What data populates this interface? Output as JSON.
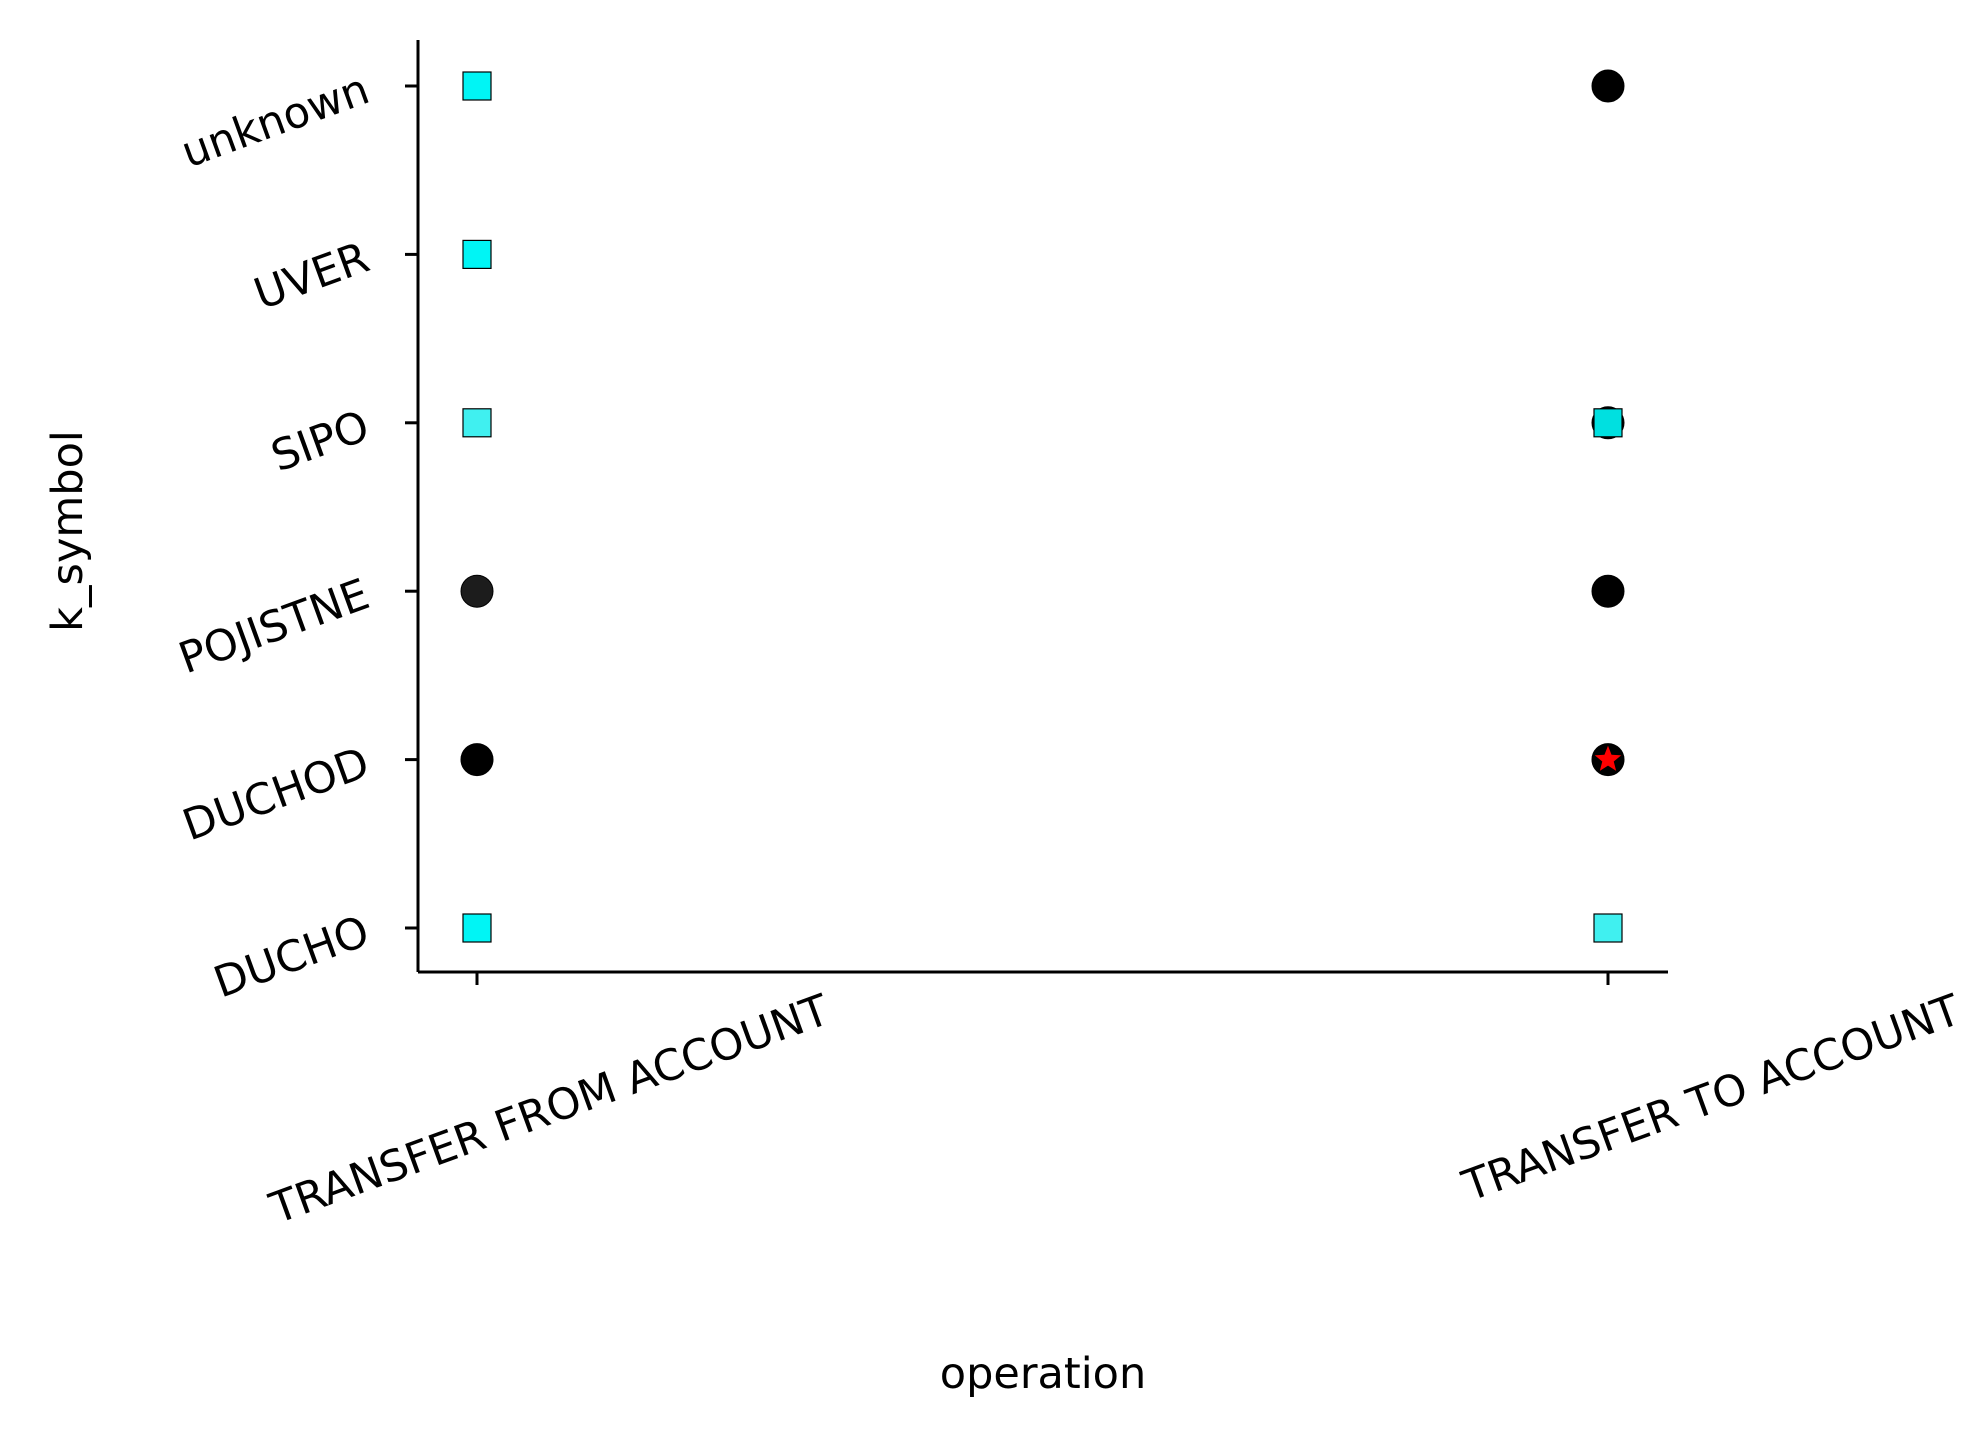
{
  "chart_data": {
    "type": "scatter",
    "xlabel": "operation",
    "ylabel": "k_symbol",
    "x_categories": [
      "TRANSFER FROM ACCOUNT",
      "TRANSFER TO ACCOUNT"
    ],
    "y_categories": [
      "DUCHO",
      "DUCHOD",
      "POJISTNE",
      "SIPO",
      "UVER",
      "unknown"
    ],
    "grid": false,
    "legend": "none",
    "points": [
      {
        "x": "TRANSFER FROM ACCOUNT",
        "y": "unknown",
        "marker": "square",
        "color": "#00f5f5"
      },
      {
        "x": "TRANSFER FROM ACCOUNT",
        "y": "UVER",
        "marker": "square",
        "color": "#00f5f5"
      },
      {
        "x": "TRANSFER FROM ACCOUNT",
        "y": "SIPO",
        "marker": "square",
        "color": "#40f0f0"
      },
      {
        "x": "TRANSFER FROM ACCOUNT",
        "y": "POJISTNE",
        "marker": "circle",
        "color": "#1c1c1c"
      },
      {
        "x": "TRANSFER FROM ACCOUNT",
        "y": "DUCHOD",
        "marker": "circle",
        "color": "#000000"
      },
      {
        "x": "TRANSFER FROM ACCOUNT",
        "y": "DUCHO",
        "marker": "square",
        "color": "#00f5f5"
      },
      {
        "x": "TRANSFER TO ACCOUNT",
        "y": "unknown",
        "marker": "circle",
        "color": "#000000"
      },
      {
        "x": "TRANSFER TO ACCOUNT",
        "y": "SIPO",
        "marker": "circle",
        "color": "#000000"
      },
      {
        "x": "TRANSFER TO ACCOUNT",
        "y": "SIPO",
        "marker": "square",
        "color": "#00e0e0"
      },
      {
        "x": "TRANSFER TO ACCOUNT",
        "y": "POJISTNE",
        "marker": "circle",
        "color": "#000000"
      },
      {
        "x": "TRANSFER TO ACCOUNT",
        "y": "DUCHOD",
        "marker": "circle",
        "color": "#000000"
      },
      {
        "x": "TRANSFER TO ACCOUNT",
        "y": "DUCHOD",
        "marker": "star",
        "color": "#ff0000"
      },
      {
        "x": "TRANSFER TO ACCOUNT",
        "y": "DUCHO",
        "marker": "square",
        "color": "#40f0f0"
      }
    ]
  }
}
